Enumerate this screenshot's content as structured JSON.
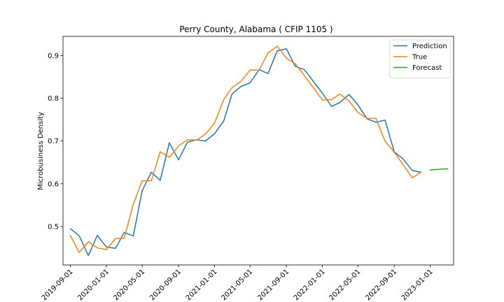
{
  "chart_data": {
    "type": "line",
    "title": "Perry County, Alabama ( CFIP 1105 )",
    "xlabel": "",
    "ylabel": "Microbusiness Density",
    "ylim": [
      0.41,
      0.945
    ],
    "xlim": [
      "2019-08-07",
      "2023-03-21"
    ],
    "grid": false,
    "legend_position": "top-right",
    "x_ticks": [
      "2019-09-01",
      "2020-01-01",
      "2020-05-01",
      "2020-09-01",
      "2021-01-01",
      "2021-05-01",
      "2021-09-01",
      "2022-01-01",
      "2022-05-01",
      "2022-09-01",
      "2023-01-01"
    ],
    "y_ticks": [
      0.5,
      0.6,
      0.7,
      0.8,
      0.9
    ],
    "series": [
      {
        "name": "Prediction",
        "color": "#1f77b4",
        "x": [
          "2019-09-01",
          "2019-10-01",
          "2019-11-01",
          "2019-12-01",
          "2020-01-01",
          "2020-02-01",
          "2020-03-01",
          "2020-04-01",
          "2020-05-01",
          "2020-06-01",
          "2020-07-01",
          "2020-08-01",
          "2020-09-01",
          "2020-10-01",
          "2020-11-01",
          "2020-12-01",
          "2021-01-01",
          "2021-02-01",
          "2021-03-01",
          "2021-04-01",
          "2021-05-01",
          "2021-06-01",
          "2021-07-01",
          "2021-08-01",
          "2021-09-01",
          "2021-10-01",
          "2021-11-01",
          "2021-12-01",
          "2022-01-01",
          "2022-02-01",
          "2022-03-01",
          "2022-04-01",
          "2022-05-01",
          "2022-06-01",
          "2022-07-01",
          "2022-08-01",
          "2022-09-01",
          "2022-10-01",
          "2022-11-01",
          "2022-12-01"
        ],
        "y": [
          0.495,
          0.478,
          0.432,
          0.479,
          0.452,
          0.449,
          0.486,
          0.478,
          0.584,
          0.627,
          0.608,
          0.696,
          0.656,
          0.697,
          0.703,
          0.7,
          0.717,
          0.747,
          0.81,
          0.828,
          0.836,
          0.867,
          0.858,
          0.911,
          0.916,
          0.875,
          0.867,
          0.84,
          0.812,
          0.781,
          0.79,
          0.809,
          0.785,
          0.752,
          0.744,
          0.749,
          0.675,
          0.658,
          0.631,
          0.627
        ]
      },
      {
        "name": "True",
        "color": "#ff7f0e",
        "x": [
          "2019-09-01",
          "2019-10-01",
          "2019-11-01",
          "2019-12-01",
          "2020-01-01",
          "2020-02-01",
          "2020-03-01",
          "2020-04-01",
          "2020-05-01",
          "2020-06-01",
          "2020-07-01",
          "2020-08-01",
          "2020-09-01",
          "2020-10-01",
          "2020-11-01",
          "2020-12-01",
          "2021-01-01",
          "2021-02-01",
          "2021-03-01",
          "2021-04-01",
          "2021-05-01",
          "2021-06-01",
          "2021-07-01",
          "2021-08-01",
          "2021-09-01",
          "2021-10-01",
          "2021-11-01",
          "2021-12-01",
          "2022-01-01",
          "2022-02-01",
          "2022-03-01",
          "2022-04-01",
          "2022-05-01",
          "2022-06-01",
          "2022-07-01",
          "2022-08-01",
          "2022-09-01",
          "2022-10-01",
          "2022-11-01",
          "2022-12-01"
        ],
        "y": [
          0.479,
          0.439,
          0.464,
          0.45,
          0.446,
          0.472,
          0.472,
          0.552,
          0.607,
          0.607,
          0.675,
          0.662,
          0.688,
          0.703,
          0.702,
          0.716,
          0.742,
          0.797,
          0.825,
          0.84,
          0.866,
          0.866,
          0.906,
          0.922,
          0.894,
          0.881,
          0.853,
          0.825,
          0.796,
          0.797,
          0.81,
          0.794,
          0.767,
          0.753,
          0.753,
          0.7,
          0.674,
          0.645,
          0.614,
          0.627
        ]
      },
      {
        "name": "Forecast",
        "color": "#2ca02c",
        "x": [
          "2023-01-01",
          "2023-02-01",
          "2023-03-01"
        ],
        "y": [
          0.632,
          0.634,
          0.635
        ]
      }
    ]
  }
}
